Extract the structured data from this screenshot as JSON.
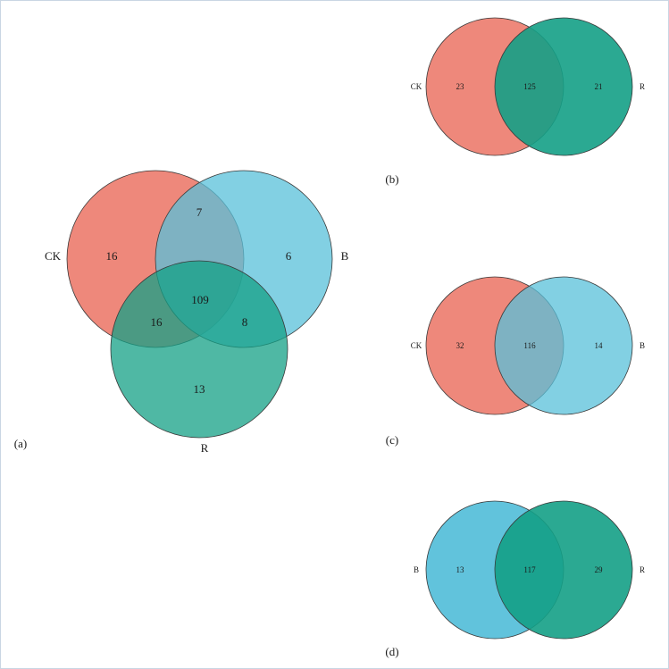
{
  "panel_a": {
    "panel_label": "(a)",
    "sets": {
      "ck": "CK",
      "b": "B",
      "r": "R"
    },
    "counts": {
      "ck_only": "16",
      "b_only": "6",
      "r_only": "13",
      "ck_b": "7",
      "ck_r": "16",
      "b_r": "8",
      "all": "109"
    }
  },
  "panel_b": {
    "panel_label": "(b)",
    "left_set": "CK",
    "right_set": "R",
    "left_only": "23",
    "overlap": "125",
    "right_only": "21"
  },
  "panel_c": {
    "panel_label": "(c)",
    "left_set": "CK",
    "right_set": "B",
    "left_only": "32",
    "overlap": "116",
    "right_only": "14"
  },
  "panel_d": {
    "panel_label": "(d)",
    "left_set": "B",
    "right_set": "R",
    "left_only": "13",
    "overlap": "117",
    "right_only": "29"
  },
  "colors": {
    "ck": "#e8604f",
    "b": "#58c0da",
    "r": "#14a086",
    "stroke": "#3a3a3a"
  }
}
